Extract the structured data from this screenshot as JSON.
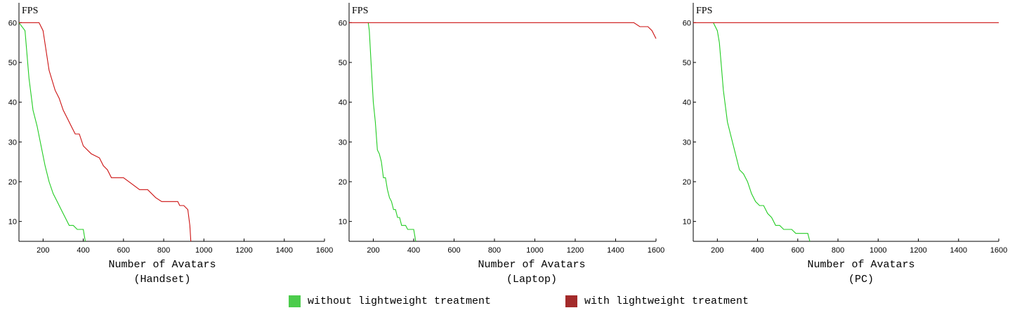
{
  "chart_data": [
    {
      "type": "line",
      "subtitle": "(Handset)",
      "xlabel": "Number of Avatars",
      "ylabel": "FPS",
      "xlim": [
        80,
        1600
      ],
      "ylim": [
        5,
        65
      ],
      "xticks": [
        200,
        400,
        600,
        800,
        1000,
        1200,
        1400,
        1600
      ],
      "yticks": [
        10,
        20,
        30,
        40,
        50,
        60
      ],
      "series": [
        {
          "name": "without lightweight treatment",
          "color": "#22cc22",
          "x": [
            80,
            110,
            130,
            150,
            170,
            190,
            210,
            230,
            250,
            270,
            290,
            310,
            330,
            350,
            370,
            390,
            400,
            410
          ],
          "y": [
            60,
            58,
            46,
            38,
            34,
            29,
            24,
            20,
            17,
            15,
            13,
            11,
            9,
            9,
            8,
            8,
            8,
            5
          ]
        },
        {
          "name": "with lightweight treatment",
          "color": "#cc1111",
          "x": [
            80,
            180,
            200,
            230,
            260,
            280,
            300,
            320,
            340,
            360,
            380,
            400,
            440,
            480,
            500,
            520,
            540,
            600,
            640,
            680,
            720,
            760,
            790,
            840,
            870,
            880,
            900,
            920,
            930,
            935
          ],
          "y": [
            60,
            60,
            58,
            48,
            43,
            41,
            38,
            36,
            34,
            32,
            32,
            29,
            27,
            26,
            24,
            23,
            21,
            21,
            19.5,
            18,
            18,
            16,
            15,
            15,
            15,
            14,
            14,
            13,
            9,
            5
          ]
        }
      ]
    },
    {
      "type": "line",
      "subtitle": "(Laptop)",
      "xlabel": "Number of Avatars",
      "ylabel": "FPS",
      "xlim": [
        80,
        1600
      ],
      "ylim": [
        5,
        65
      ],
      "xticks": [
        200,
        400,
        600,
        800,
        1000,
        1200,
        1400,
        1600
      ],
      "yticks": [
        10,
        20,
        30,
        40,
        50,
        60
      ],
      "series": [
        {
          "name": "without lightweight treatment",
          "color": "#22cc22",
          "x": [
            175,
            180,
            190,
            200,
            210,
            220,
            230,
            240,
            250,
            260,
            270,
            280,
            290,
            300,
            310,
            320,
            330,
            340,
            350,
            360,
            370,
            380,
            390,
            400,
            410
          ],
          "y": [
            60,
            58,
            49,
            40,
            35,
            28,
            27,
            25,
            21,
            21,
            18,
            16,
            15,
            13,
            13,
            11,
            11,
            9,
            9,
            9,
            8,
            8,
            8,
            8,
            5
          ]
        },
        {
          "name": "with lightweight treatment",
          "color": "#cc1111",
          "x": [
            80,
            1490,
            1520,
            1540,
            1560,
            1580,
            1600
          ],
          "y": [
            60,
            60,
            59,
            59,
            59,
            58,
            56
          ]
        }
      ]
    },
    {
      "type": "line",
      "subtitle": "(PC)",
      "xlabel": "Number of Avatars",
      "ylabel": "FPS",
      "xlim": [
        80,
        1600
      ],
      "ylim": [
        5,
        65
      ],
      "xticks": [
        200,
        400,
        600,
        800,
        1000,
        1200,
        1400,
        1600
      ],
      "yticks": [
        10,
        20,
        30,
        40,
        50,
        60
      ],
      "series": [
        {
          "name": "without lightweight treatment",
          "color": "#22cc22",
          "x": [
            180,
            200,
            210,
            220,
            230,
            250,
            270,
            290,
            310,
            330,
            350,
            370,
            390,
            410,
            430,
            450,
            470,
            490,
            510,
            530,
            550,
            570,
            590,
            610,
            630,
            650,
            660
          ],
          "y": [
            60,
            58,
            55,
            49,
            43,
            35,
            31,
            27,
            23,
            22,
            20,
            17,
            15,
            14,
            14,
            12,
            11,
            9,
            9,
            8,
            8,
            8,
            7,
            7,
            7,
            7,
            5
          ]
        },
        {
          "name": "with lightweight treatment",
          "color": "#cc1111",
          "x": [
            80,
            1600
          ],
          "y": [
            60,
            60
          ]
        }
      ]
    }
  ],
  "legend": [
    {
      "label": "without lightweight treatment",
      "color": "#4ccc4c"
    },
    {
      "label": "with lightweight treatment",
      "color": "#a32a2a"
    }
  ]
}
